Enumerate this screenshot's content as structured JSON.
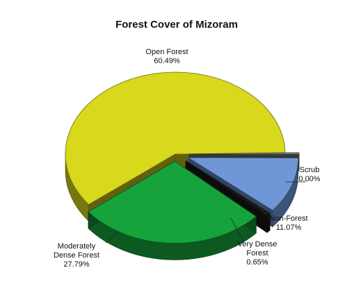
{
  "chart_data": {
    "type": "pie",
    "title": "Forest Cover of Mizoram",
    "slices": [
      {
        "name": "Open Forest",
        "value": 60.49,
        "value_label": "60.49%",
        "color": "#d8d81c",
        "exploded": false
      },
      {
        "name": "Scrub",
        "value": 0.0,
        "value_label": "0.00%",
        "color": "#7a7a7a",
        "exploded": true
      },
      {
        "name": "Non-Forest",
        "value": 11.07,
        "value_label": "11.07%",
        "color": "#6f97d8",
        "exploded": true
      },
      {
        "name": "Very Dense Forest",
        "value": 0.65,
        "value_label": "0.65%",
        "color": "#1a1a1a",
        "exploded": true
      },
      {
        "name": "Moderately Dense Forest",
        "value": 27.79,
        "value_label": "27.79%",
        "color": "#16a33c",
        "exploded": true
      }
    ],
    "legend": "none",
    "style": "3d-exploded"
  }
}
